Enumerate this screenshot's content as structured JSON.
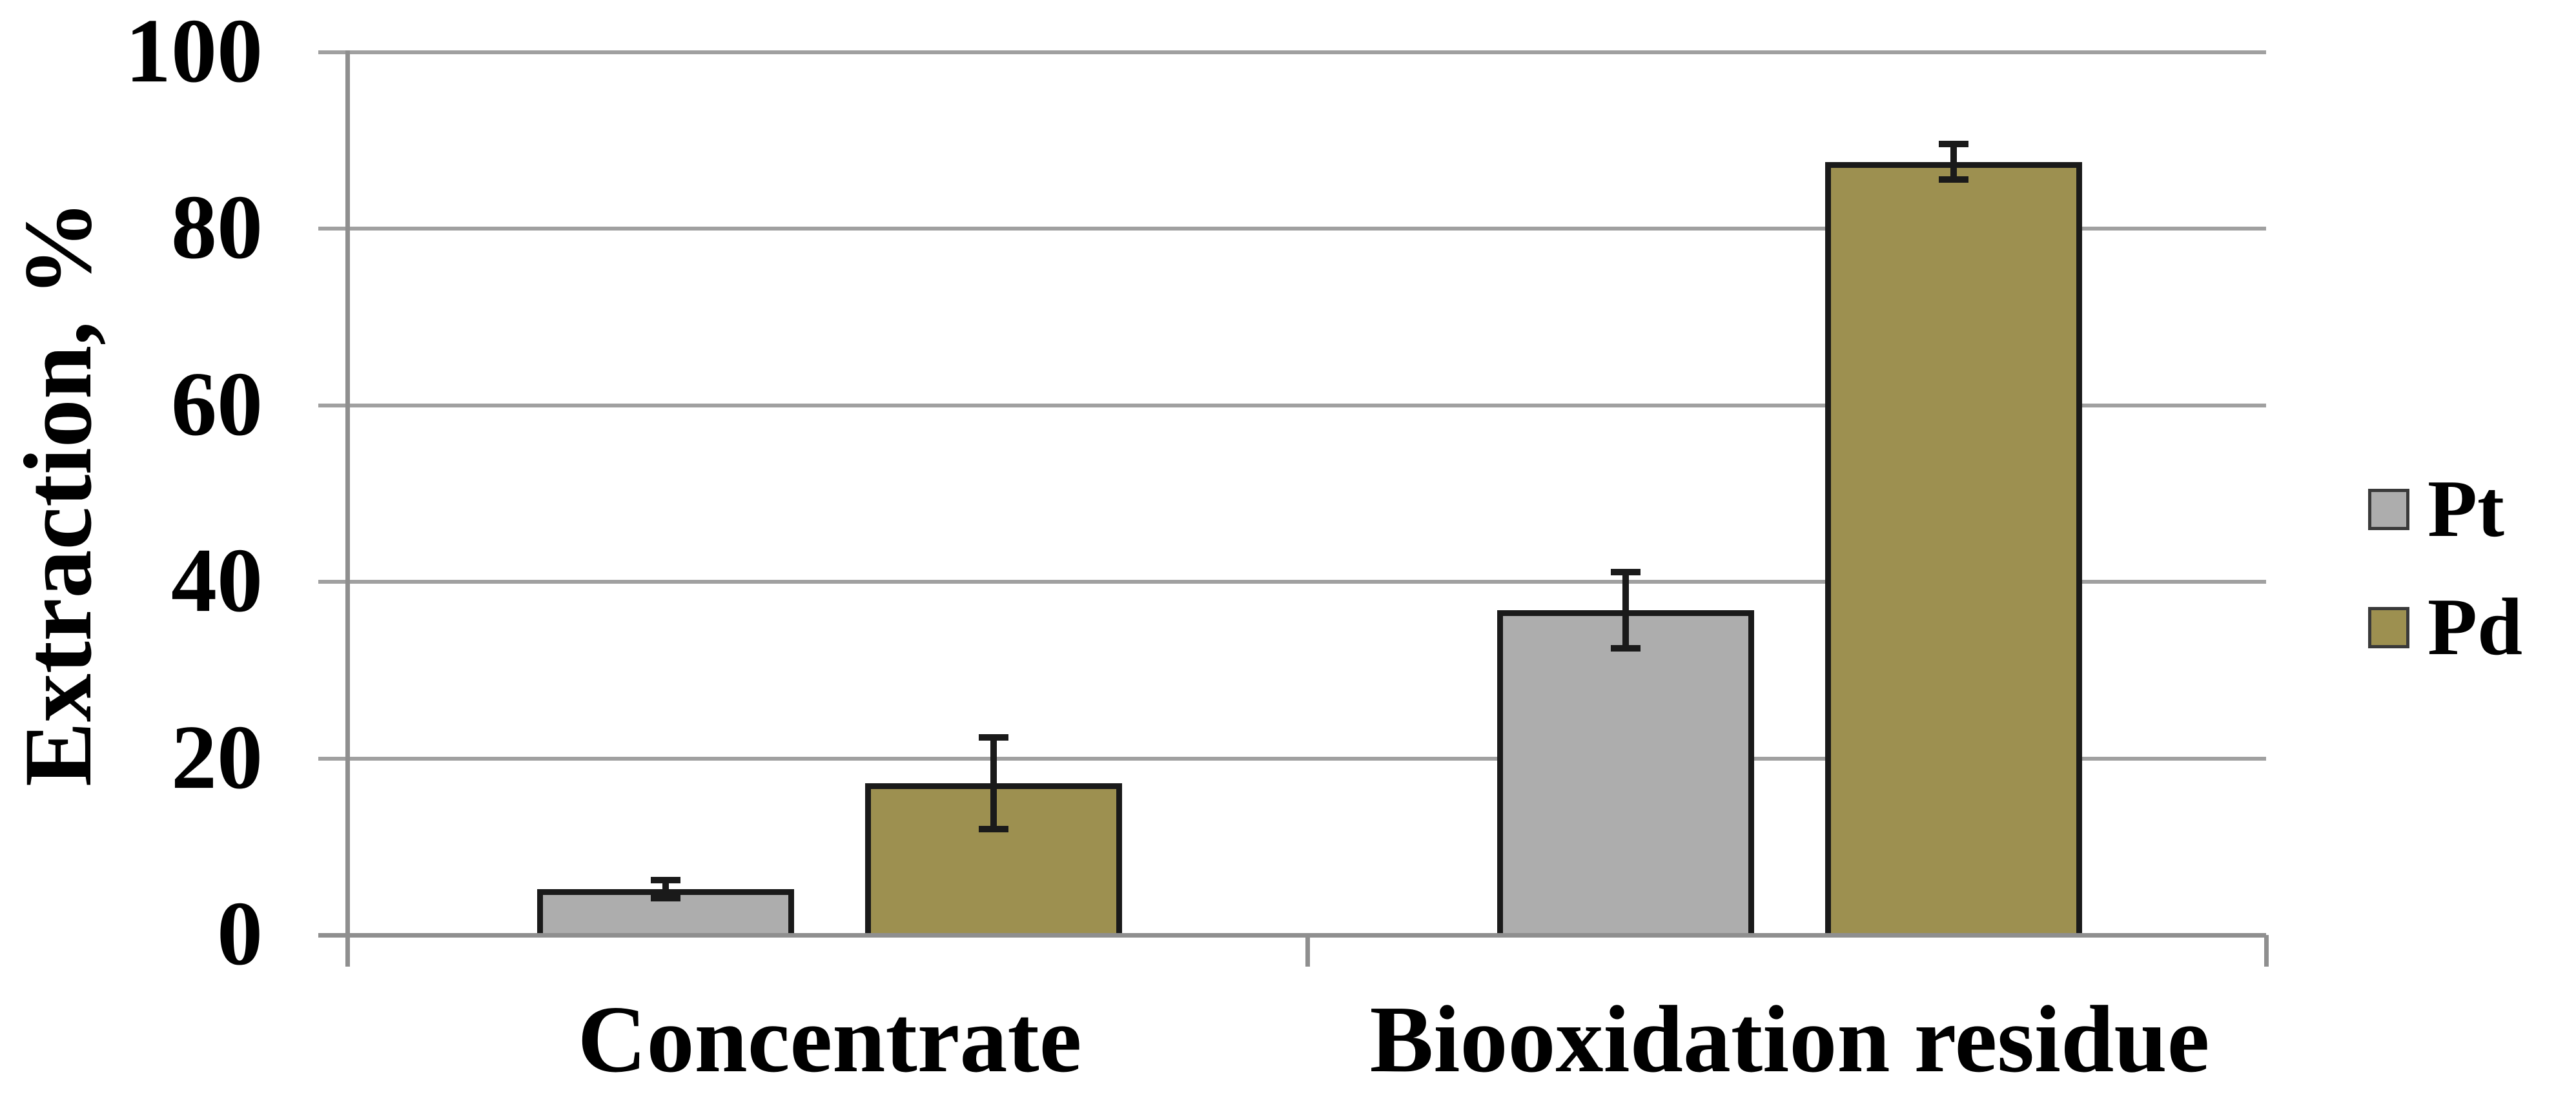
{
  "chart_data": {
    "type": "bar",
    "title": "",
    "categories": [
      "Concentrate",
      "Biooxidation residue"
    ],
    "series": [
      {
        "name": "Pt",
        "color": "#adadad",
        "values": [
          5.2,
          36.8
        ],
        "errors": [
          1.0,
          4.3
        ]
      },
      {
        "name": "Pd",
        "color": "#9d9050",
        "values": [
          17.2,
          87.6
        ],
        "errors": [
          5.2,
          2.0
        ]
      }
    ],
    "ylabel": "Extraction, %",
    "ylim": [
      0,
      100
    ],
    "yticks": [
      0,
      20,
      40,
      60,
      80,
      100
    ],
    "grid": true,
    "legend_position": "right",
    "error_bars": true,
    "colors": {
      "bar_border": "#1a1a1a",
      "error_bar": "#1a1a1a",
      "gridline": "#a0a0a0",
      "axis": "#8f8f8f",
      "background": "#ffffff",
      "text": "#000000"
    }
  }
}
